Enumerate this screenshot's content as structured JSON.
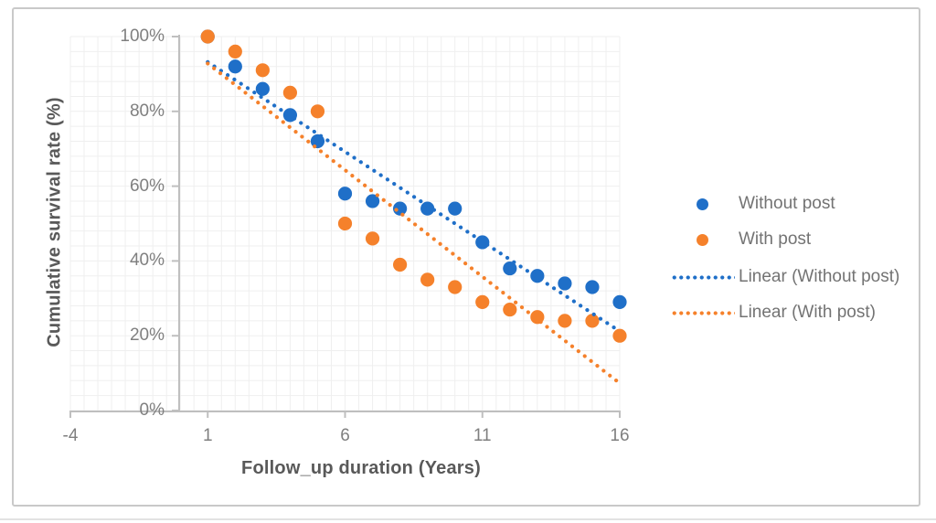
{
  "colors": {
    "blue": "#1F6FC8",
    "orange": "#F5812B",
    "grid": "#efefef",
    "axis": "#bfbfbf",
    "tick_text": "#7f7f7f",
    "title_text": "#595959",
    "legend_text": "#737373",
    "frame_border": "#c9c9c9"
  },
  "chart_data": {
    "type": "scatter",
    "title": "",
    "xlabel": "Follow_up duration (Years)",
    "ylabel": "Cumulative survival rate (%)",
    "xlim": [
      -4,
      16
    ],
    "ylim": [
      0,
      100
    ],
    "grid": true,
    "minor_grid_step_x_years": 0.5,
    "minor_grid_step_y_pct": 4,
    "x_tick_values": [
      -4,
      1,
      6,
      11,
      16
    ],
    "x_ticks": [
      "-4",
      "1",
      "6",
      "11",
      "16"
    ],
    "y_tick_values": [
      0,
      20,
      40,
      60,
      80,
      100
    ],
    "y_ticks": [
      "0%",
      "20%",
      "40%",
      "60%",
      "80%",
      "100%"
    ],
    "legend_position": "right",
    "x": [
      1,
      2,
      3,
      4,
      5,
      6,
      7,
      8,
      9,
      10,
      11,
      12,
      13,
      14,
      15,
      16
    ],
    "series": [
      {
        "name": "Without post",
        "color": "#1F6FC8",
        "marker": "circle",
        "values_pct": [
          100,
          92,
          86,
          79,
          72,
          58,
          56,
          54,
          54,
          54,
          45,
          38,
          36,
          34,
          33,
          29
        ]
      },
      {
        "name": "With post",
        "color": "#F5812B",
        "marker": "circle",
        "values_pct": [
          100,
          96,
          91,
          85,
          80,
          50,
          46,
          39,
          35,
          33,
          29,
          27,
          25,
          24,
          24,
          20
        ]
      }
    ],
    "trendlines": [
      {
        "name": "Linear (Without post)",
        "color": "#1F6FC8",
        "style": "dotted",
        "from": {
          "x": 1,
          "y": 93.2
        },
        "to": {
          "x": 16,
          "y": 21.2
        }
      },
      {
        "name": "Linear (With post)",
        "color": "#F5812B",
        "style": "dotted",
        "from": {
          "x": 1,
          "y": 92.8
        },
        "to": {
          "x": 16,
          "y": 7.3
        }
      }
    ]
  }
}
